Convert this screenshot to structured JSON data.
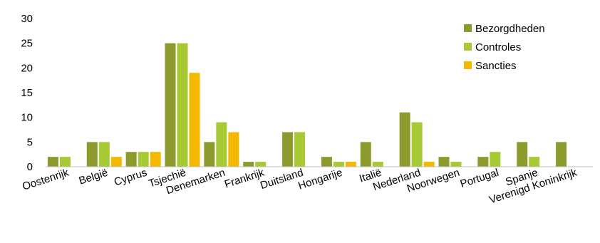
{
  "chart_data": {
    "type": "bar",
    "categories": [
      "Oostenrijk",
      "België",
      "Cyprus",
      "Tsjechië",
      "Denemarken",
      "Frankrijk",
      "Duitsland",
      "Hongarije",
      "Italië",
      "Nederland",
      "Noorwegen",
      "Portugal",
      "Spanje",
      "Verenigd Koninkrijk"
    ],
    "series": [
      {
        "name": "Bezorgdheden",
        "color": "#8c9a2e",
        "values": [
          2,
          5,
          3,
          25,
          5,
          1,
          7,
          2,
          5,
          11,
          2,
          2,
          5,
          5
        ]
      },
      {
        "name": "Controles",
        "color": "#a6c934",
        "values": [
          2,
          5,
          3,
          25,
          9,
          1,
          7,
          1,
          1,
          9,
          1,
          3,
          2,
          0
        ]
      },
      {
        "name": "Sancties",
        "color": "#f5b800",
        "values": [
          0,
          2,
          3,
          19,
          7,
          0,
          0,
          1,
          0,
          1,
          0,
          0,
          0,
          0
        ]
      }
    ],
    "ylim": [
      0,
      30
    ],
    "yticks": [
      0,
      5,
      10,
      15,
      20,
      25,
      30
    ],
    "grid": false,
    "legend_position": "top-right",
    "xlabel": "",
    "ylabel": ""
  }
}
